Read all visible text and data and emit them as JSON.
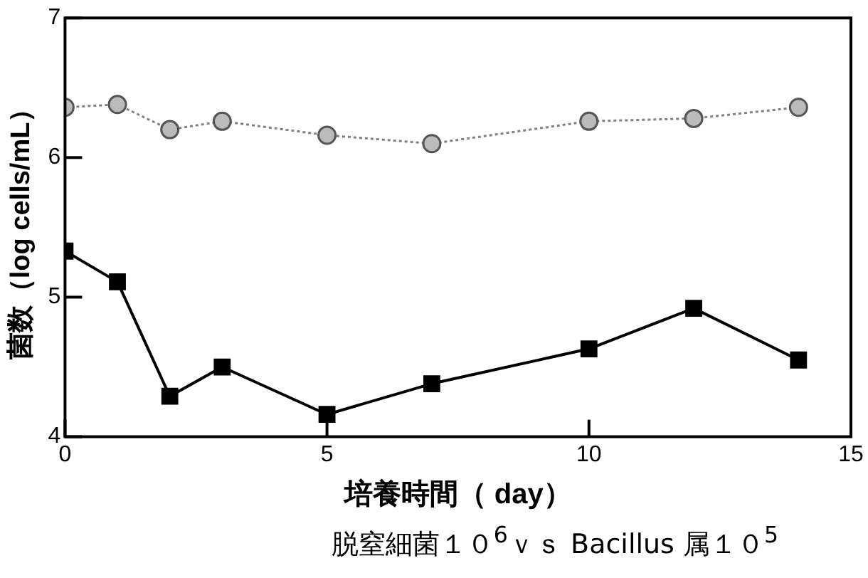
{
  "chart_data": {
    "type": "line",
    "xlabel": "培養時間（ day）",
    "ylabel": "菌数（log cells/mL）",
    "x": [
      0,
      1,
      2,
      3,
      5,
      7,
      10,
      12,
      14
    ],
    "series": [
      {
        "color": "#808080",
        "marker": "circle",
        "line_style": "dotted",
        "values": [
          6.36,
          6.38,
          6.2,
          6.26,
          6.16,
          6.1,
          6.26,
          6.28,
          6.36
        ]
      },
      {
        "color": "#000000",
        "marker": "square",
        "line_style": "solid",
        "values": [
          5.33,
          5.11,
          4.29,
          4.5,
          4.16,
          4.38,
          4.63,
          4.92,
          4.55
        ]
      }
    ],
    "xlim": [
      0,
      15
    ],
    "xticks": [
      0,
      5,
      10,
      15
    ],
    "ylim": [
      4,
      7
    ],
    "yticks": [
      4,
      5,
      6,
      7
    ],
    "grid": false,
    "legend": false,
    "annotations": [
      "脱窒細菌１０$^{6}$ｖｓ Bacillus 属１０$^{5}$"
    ]
  }
}
